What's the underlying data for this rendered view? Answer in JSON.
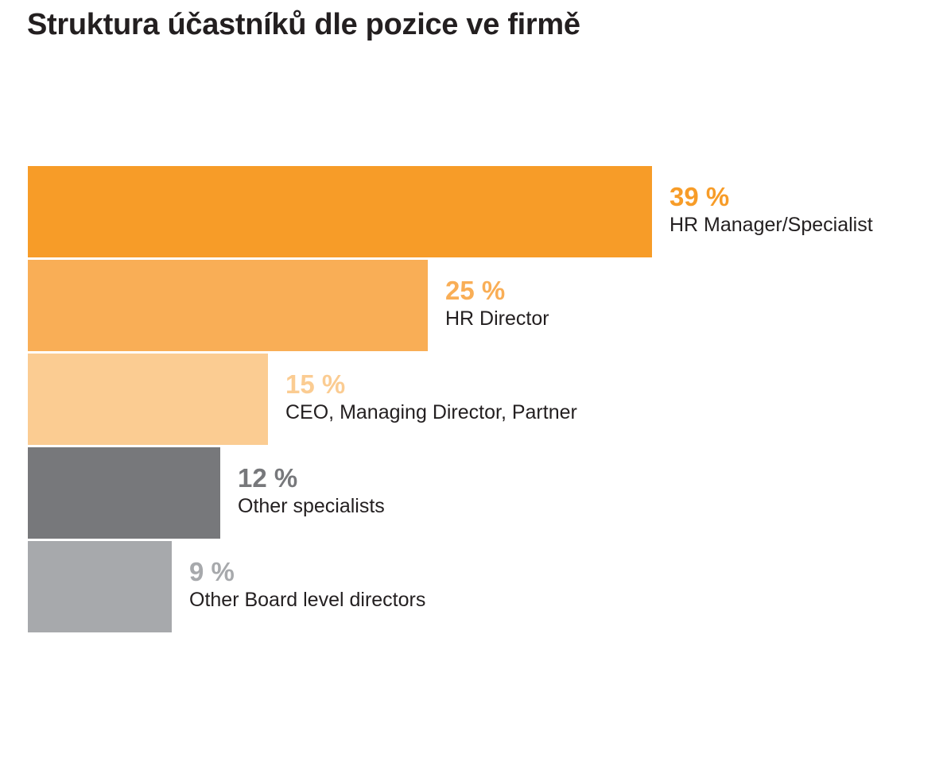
{
  "chart_data": {
    "type": "bar",
    "orientation": "horizontal",
    "title": "Struktura účastníků dle pozice ve firmě",
    "grid": false,
    "legend": "none",
    "value_suffix": " %",
    "xlim": [
      0,
      39
    ],
    "bars": [
      {
        "category": "HR Manager/Specialist",
        "value": 39,
        "value_label": "39 %",
        "color": "#f79c28"
      },
      {
        "category": "HR Director",
        "value": 25,
        "value_label": "25 %",
        "color": "#f9ae56"
      },
      {
        "category": "CEO, Managing Director, Partner",
        "value": 15,
        "value_label": "15 %",
        "color": "#fbcc92"
      },
      {
        "category": "Other specialists",
        "value": 12,
        "value_label": "12 %",
        "color": "#77787b"
      },
      {
        "category": "Other Board level directors",
        "value": 9,
        "value_label": "9 %",
        "color": "#a7a9ac"
      }
    ]
  }
}
